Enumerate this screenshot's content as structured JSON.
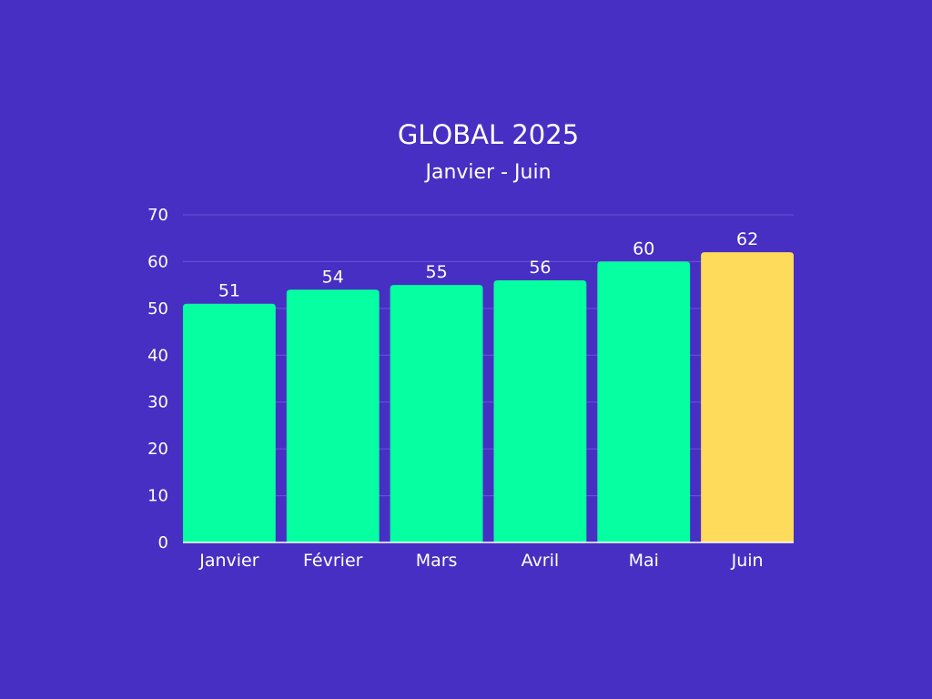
{
  "chart_data": {
    "type": "bar",
    "title": "GLOBAL 2025",
    "subtitle": "Janvier - Juin",
    "categories": [
      "Janvier",
      "Février",
      "Mars",
      "Avril",
      "Mai",
      "Juin"
    ],
    "values": [
      51,
      54,
      55,
      56,
      60,
      62
    ],
    "data_labels": [
      "51",
      "54",
      "55",
      "56",
      "60",
      "62"
    ],
    "yticks": [
      "0",
      "10",
      "20",
      "30",
      "40",
      "50",
      "60",
      "70"
    ],
    "ylim": [
      0,
      70
    ],
    "xlabel": "",
    "ylabel": "",
    "grid": true,
    "legend": "none",
    "colors": {
      "background": "#472fc4",
      "bar": "#06ffa0",
      "highlight_bar": "#ffdb5c",
      "gridline": "#6a56d6",
      "text": "#ffffff"
    },
    "highlight_index": 5
  }
}
